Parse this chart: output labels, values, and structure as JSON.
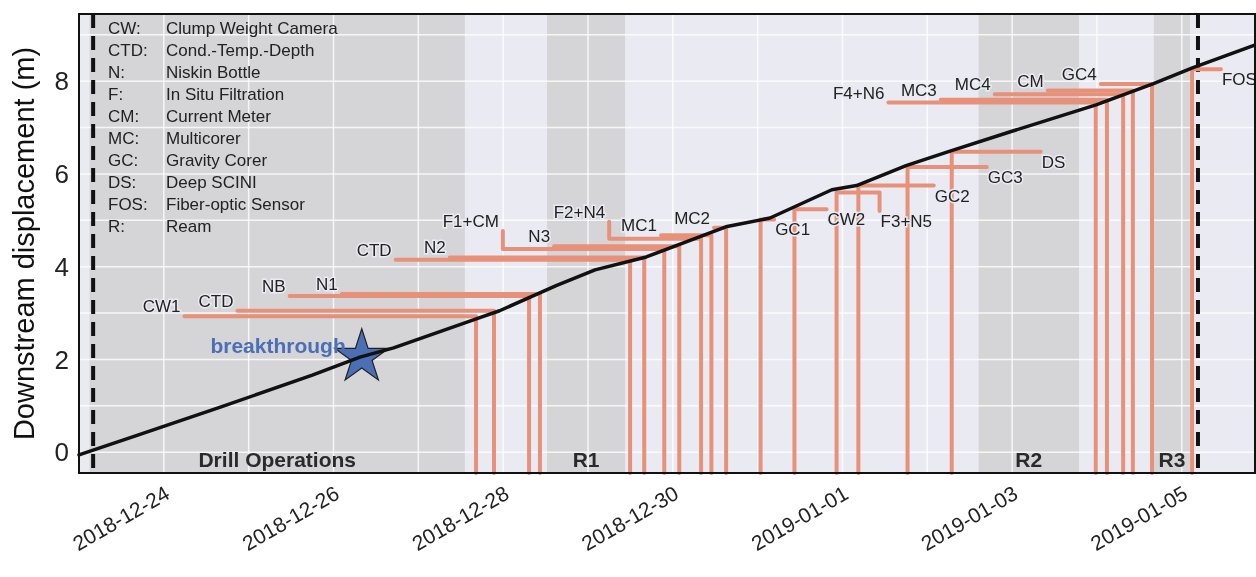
{
  "chart_data": {
    "type": "line",
    "ylabel": "Downstream displacement (m)",
    "xlim": [
      "2018-12-23",
      "2019-01-05T21:00"
    ],
    "ylim": [
      -0.45,
      9.45
    ],
    "xticks": [
      {
        "value": "2018-12-23",
        "label": null
      },
      "2018-12-24",
      {
        "value": "2018-12-25",
        "label": null
      },
      "2018-12-26",
      {
        "value": "2018-12-27",
        "label": null
      },
      "2018-12-28",
      {
        "value": "2018-12-29",
        "label": null
      },
      "2018-12-30",
      {
        "value": "2018-12-31",
        "label": null
      },
      "2019-01-01",
      {
        "value": "2019-01-02",
        "label": null
      },
      "2019-01-03",
      {
        "value": "2019-01-04",
        "label": null
      },
      "2019-01-05"
    ],
    "yticks": [
      0,
      {
        "value": 1,
        "label": null
      },
      2,
      {
        "value": 3,
        "label": null
      },
      4,
      {
        "value": 5,
        "label": null
      },
      6,
      {
        "value": 7,
        "label": null
      },
      8,
      {
        "value": 9,
        "label": null
      }
    ],
    "grid": true,
    "bands": [
      {
        "axis": "x",
        "from": "2018-12-23T03:00",
        "to": "2018-12-27T13:10",
        "label": "Drill Operations",
        "color": "#d5d5d8"
      },
      {
        "axis": "x",
        "from": "2018-12-28T12:25",
        "to": "2018-12-29T10:30",
        "label": "R1",
        "color": "#d5d5d8"
      },
      {
        "axis": "x",
        "from": "2019-01-02T14:30",
        "to": "2019-01-03T18:55",
        "label": "R2",
        "color": "#d5d5d8"
      },
      {
        "axis": "x",
        "from": "2019-01-04T16:05",
        "to": "2019-01-05T02:20",
        "label": "R3",
        "color": "#d5d5d8"
      }
    ],
    "ref_lines": [
      {
        "axis": "x",
        "value": "2018-12-23T04:00",
        "color": "#111111",
        "line_style": "dashed"
      },
      {
        "axis": "x",
        "value": "2019-01-05T04:35",
        "color": "#111111",
        "line_style": "dashed"
      }
    ],
    "annotations": [
      "CW: Clump Weight Camera",
      "CTD: Cond.-Temp.-Depth",
      "N: Niskin Bottle",
      "F: In Situ Filtration",
      "CM: Current Meter",
      "MC: Multicorer",
      "GC: Gravity Corer",
      "DS: Deep SCINI",
      "FOS: Fiber-optic Sensor",
      "R: Ream",
      {
        "text": "breakthrough",
        "x": "2018-12-26T08:00",
        "y": 2.05
      }
    ],
    "series": [
      {
        "type": "line",
        "color": "#111111",
        "x": [
          "2018-12-23T00:00",
          "2018-12-23T16:00",
          "2018-12-24T16:00",
          "2018-12-25T18:00",
          "2018-12-26T07:30",
          "2018-12-26T17:00",
          "2018-12-27T17:00",
          "2018-12-27T23:00",
          "2018-12-28T15:00",
          "2018-12-29T02:00",
          "2018-12-29T16:30",
          "2018-12-30T15:00",
          "2018-12-31T03:30",
          "2018-12-31T21:00",
          "2019-01-01T04:00",
          "2019-01-01T18:00",
          "2019-01-02T06:00",
          "2019-01-02T23:30",
          "2019-01-03T23:45",
          "2019-01-04T16:00",
          "2019-01-05T03:00",
          "2019-01-05T21:00"
        ],
        "values": [
          -0.06,
          0.35,
          0.97,
          1.66,
          2.05,
          2.25,
          2.89,
          3.05,
          3.59,
          3.93,
          4.21,
          4.86,
          5.05,
          5.66,
          5.75,
          6.18,
          6.48,
          6.91,
          7.49,
          7.95,
          8.29,
          8.79
        ]
      },
      {
        "type": "scatter",
        "marker": "star",
        "color": "#4a6fb5",
        "x": [
          "2018-12-26T08:00"
        ],
        "values": [
          2.05
        ]
      },
      {
        "type": "line",
        "name": "CW1",
        "color": "#e8917a",
        "x": [
          "2018-12-24T05:50",
          "2018-12-27T16:20",
          "2018-12-27T16:20"
        ],
        "values": [
          2.93,
          2.93,
          -0.45
        ]
      },
      {
        "type": "line",
        "name": "CTD",
        "color": "#e8917a",
        "x": [
          "2018-12-24T20:50",
          "2018-12-27T21:25",
          "2018-12-27T21:25"
        ],
        "values": [
          3.05,
          3.05,
          -0.45
        ]
      },
      {
        "type": "line",
        "name": "NB",
        "color": "#e8917a",
        "x": [
          "2018-12-25T11:35",
          "2018-12-28T07:20",
          "2018-12-28T07:20"
        ],
        "values": [
          3.37,
          3.37,
          -0.45
        ]
      },
      {
        "type": "line",
        "name": "N1",
        "color": "#e8917a",
        "x": [
          "2018-12-26T02:20",
          "2018-12-28T10:25",
          "2018-12-28T10:25"
        ],
        "values": [
          3.41,
          3.41,
          -0.45
        ]
      },
      {
        "type": "line",
        "name": "CTD",
        "color": "#e8917a",
        "x": [
          "2018-12-26T17:35",
          "2018-12-29T11:55",
          "2018-12-29T11:55"
        ],
        "values": [
          4.15,
          4.15,
          -0.45
        ]
      },
      {
        "type": "line",
        "name": "N2",
        "color": "#e8917a",
        "x": [
          "2018-12-27T08:55",
          "2018-12-29T15:55",
          "2018-12-29T15:55"
        ],
        "values": [
          4.2,
          4.2,
          -0.45
        ]
      },
      {
        "type": "line",
        "name": "F1+CM",
        "color": "#e8917a",
        "x": [
          "2018-12-27T23:55",
          "2018-12-27T23:55",
          "2018-12-29T21:35",
          "2018-12-29T21:35"
        ],
        "values": [
          4.77,
          4.38,
          4.38,
          -0.45
        ]
      },
      {
        "type": "line",
        "name": "N3",
        "color": "#e8917a",
        "x": [
          "2018-12-28T14:25",
          "2018-12-30T01:50",
          "2018-12-30T01:50"
        ],
        "values": [
          4.44,
          4.44,
          -0.45
        ]
      },
      {
        "type": "line",
        "name": "F2+N4",
        "color": "#e8917a",
        "x": [
          "2018-12-29T06:00",
          "2018-12-29T06:00",
          "2018-12-30T08:00",
          "2018-12-30T08:00"
        ],
        "values": [
          4.97,
          4.6,
          4.6,
          -0.45
        ]
      },
      {
        "type": "line",
        "name": "MC1",
        "color": "#e8917a",
        "x": [
          "2018-12-29T20:40",
          "2018-12-30T10:55",
          "2018-12-30T10:55"
        ],
        "values": [
          4.68,
          4.68,
          -0.45
        ]
      },
      {
        "type": "line",
        "name": "MC2",
        "color": "#e8917a",
        "x": [
          "2018-12-30T11:40",
          "2018-12-30T15:05",
          "2018-12-30T15:05"
        ],
        "values": [
          4.84,
          4.84,
          -0.45
        ]
      },
      {
        "type": "line",
        "name": "GC1",
        "color": "#e8917a",
        "x": [
          "2018-12-31T00:50",
          "2018-12-31T00:50",
          "2018-12-31T04:40"
        ],
        "values": [
          -0.45,
          5.02,
          5.02
        ]
      },
      {
        "type": "line",
        "name": "CW2",
        "color": "#e8917a",
        "x": [
          "2018-12-31T10:25",
          "2018-12-31T10:25",
          "2018-12-31T19:30"
        ],
        "values": [
          -0.45,
          5.24,
          5.24
        ]
      },
      {
        "type": "line",
        "name": "F3+N5",
        "color": "#e8917a",
        "x": [
          "2018-12-31T22:20",
          "2018-12-31T22:20",
          "2019-01-01T10:30",
          "2019-01-01T10:30"
        ],
        "values": [
          -0.45,
          5.6,
          5.6,
          5.2
        ]
      },
      {
        "type": "line",
        "name": "GC2",
        "color": "#e8917a",
        "x": [
          "2019-01-01T04:30",
          "2019-01-01T04:30",
          "2019-01-02T01:50"
        ],
        "values": [
          -0.45,
          5.75,
          5.75
        ]
      },
      {
        "type": "line",
        "name": "GC3",
        "color": "#e8917a",
        "x": [
          "2019-01-01T18:25",
          "2019-01-01T18:25",
          "2019-01-02T16:50"
        ],
        "values": [
          -0.45,
          6.15,
          6.15
        ]
      },
      {
        "type": "line",
        "name": "DS",
        "color": "#e8917a",
        "x": [
          "2019-01-02T06:55",
          "2019-01-02T06:55",
          "2019-01-03T08:05"
        ],
        "values": [
          -0.45,
          6.48,
          6.48
        ]
      },
      {
        "type": "line",
        "name": "F4+N6",
        "color": "#e8917a",
        "x": [
          "2019-01-01T13:00",
          "2019-01-03T23:40",
          "2019-01-03T23:40"
        ],
        "values": [
          7.54,
          7.54,
          -0.45
        ]
      },
      {
        "type": "line",
        "name": "MC3",
        "color": "#e8917a",
        "x": [
          "2019-01-02T03:50",
          "2019-01-04T02:50",
          "2019-01-04T02:50"
        ],
        "values": [
          7.6,
          7.6,
          -0.45
        ]
      },
      {
        "type": "line",
        "name": "MC4",
        "color": "#e8917a",
        "x": [
          "2019-01-02T19:05",
          "2019-01-04T07:25",
          "2019-01-04T07:25"
        ],
        "values": [
          7.72,
          7.72,
          -0.45
        ]
      },
      {
        "type": "line",
        "name": "CM",
        "color": "#e8917a",
        "x": [
          "2019-01-03T10:05",
          "2019-01-04T10:10",
          "2019-01-04T10:10"
        ],
        "values": [
          7.8,
          7.8,
          -0.45
        ]
      },
      {
        "type": "line",
        "name": "GC4",
        "color": "#e8917a",
        "x": [
          "2019-01-04T01:05",
          "2019-01-04T15:35",
          "2019-01-04T15:35"
        ],
        "values": [
          7.94,
          7.94,
          -0.45
        ]
      },
      {
        "type": "line",
        "name": "FOS",
        "color": "#e8917a",
        "x": [
          "2019-01-05T02:55",
          "2019-01-05T02:55",
          "2019-01-05T11:05"
        ],
        "values": [
          -0.45,
          8.26,
          8.26
        ]
      }
    ]
  }
}
